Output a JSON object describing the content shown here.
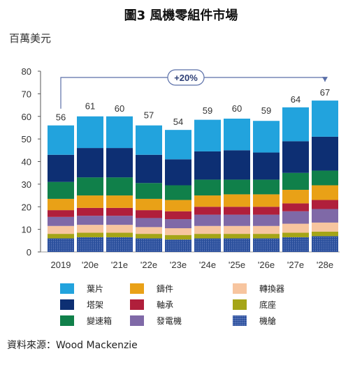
{
  "title": "圖3 風機零組件市場",
  "unit_label": "百萬美元",
  "source": "資料來源：Wood Mackenzie",
  "chart_data": {
    "type": "bar",
    "stacked": true,
    "categories": [
      "2019",
      "'20e",
      "'21e",
      "'22e",
      "'23e",
      "'24e",
      "'25e",
      "'26e",
      "'27e",
      "'28e"
    ],
    "totals": [
      56,
      61,
      60,
      57,
      54,
      59,
      60,
      59,
      64,
      67
    ],
    "ylim": [
      0,
      80
    ],
    "yticks": [
      0,
      10,
      20,
      30,
      40,
      50,
      60,
      70,
      80
    ],
    "grid": false,
    "annotation": {
      "text": "+20%",
      "from": "2019",
      "to": "'28e"
    },
    "series": [
      {
        "name": "機艙",
        "color": "#2a4f9c",
        "pattern": "dots",
        "values": [
          6,
          6.5,
          6.5,
          6,
          5.5,
          6,
          6,
          6,
          6.5,
          7
        ]
      },
      {
        "name": "底座",
        "color": "#a5a517",
        "values": [
          2,
          2,
          2,
          2,
          2,
          2,
          2,
          2,
          2,
          2
        ]
      },
      {
        "name": "轉換器",
        "color": "#f7c59f",
        "values": [
          3.5,
          3.5,
          3.5,
          3,
          3,
          3.5,
          3.5,
          3.5,
          4,
          4
        ]
      },
      {
        "name": "發電機",
        "color": "#7f69a7",
        "values": [
          4,
          4,
          4,
          4,
          4,
          5,
          5,
          5,
          5.5,
          6
        ]
      },
      {
        "name": "軸承",
        "color": "#b01f3b",
        "values": [
          3,
          3.5,
          3.5,
          3.5,
          3.5,
          3.5,
          3.5,
          3.5,
          3.5,
          4
        ]
      },
      {
        "name": "鑄件",
        "color": "#e9a117",
        "values": [
          5,
          5.5,
          5.5,
          5,
          5,
          5,
          5.5,
          5.5,
          6,
          6.5
        ]
      },
      {
        "name": "變速箱",
        "color": "#10804a",
        "values": [
          7.5,
          8,
          8,
          7,
          6.5,
          7,
          6.5,
          6.5,
          7.5,
          6.5
        ]
      },
      {
        "name": "塔架",
        "color": "#0d2f73",
        "values": [
          12,
          13,
          13,
          12.5,
          11.5,
          12.5,
          13,
          12,
          14,
          15
        ]
      },
      {
        "name": "葉片",
        "color": "#22a3dd",
        "values": [
          13,
          14,
          14,
          13,
          13,
          14,
          14,
          14,
          15,
          16
        ]
      }
    ]
  },
  "legend": {
    "items": [
      {
        "label": "葉片",
        "color": "#22a3dd"
      },
      {
        "label": "鑄件",
        "color": "#e9a117"
      },
      {
        "label": "轉換器",
        "color": "#f7c59f"
      },
      {
        "label": "塔架",
        "color": "#0d2f73"
      },
      {
        "label": "軸承",
        "color": "#b01f3b"
      },
      {
        "label": "底座",
        "color": "#a5a517"
      },
      {
        "label": "變速箱",
        "color": "#10804a"
      },
      {
        "label": "發電機",
        "color": "#7f69a7"
      },
      {
        "label": "機艙",
        "color": "#2a4f9c"
      }
    ]
  }
}
